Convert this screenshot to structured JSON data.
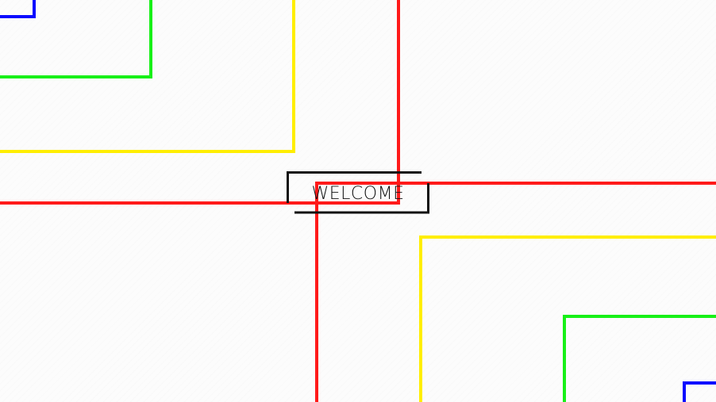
{
  "welcome": {
    "label": "WELCOME"
  },
  "colors": {
    "background": "#fcfcfc",
    "red": "#ff1a1a",
    "yellow": "#ffee00",
    "green": "#18f018",
    "blue": "#0a0aff",
    "frame": "#111111"
  },
  "icons": {
    "top_left_squares": "nested-squares-icon",
    "bottom_right_squares": "nested-squares-icon"
  }
}
